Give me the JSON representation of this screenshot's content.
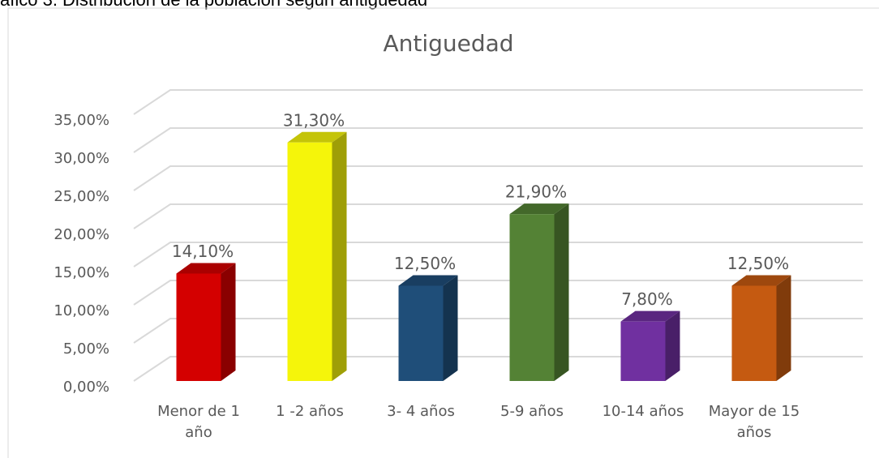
{
  "caption": "áfico 3. Distribución de la población según antigüedad",
  "chart_data": {
    "type": "bar3d",
    "title": "Antiguedad",
    "categories": [
      "Menor de 1 año",
      "1 -2 años",
      "3- 4 años",
      "5-9 años",
      "10-14 años",
      "Mayor de 15 años"
    ],
    "values": [
      14.1,
      31.3,
      12.5,
      21.9,
      7.8,
      12.5
    ],
    "value_labels": [
      "14,10%",
      "31,30%",
      "12,50%",
      "21,90%",
      "7,80%",
      "12,50%"
    ],
    "colors": [
      "#d40000",
      "#f5f50a",
      "#1f4e79",
      "#548235",
      "#7030a0",
      "#c55a11"
    ],
    "ylim": [
      0,
      35
    ],
    "yticks": [
      {
        "value": 0,
        "label": "0,00%"
      },
      {
        "value": 5,
        "label": "5,00%"
      },
      {
        "value": 10,
        "label": "10,00%"
      },
      {
        "value": 15,
        "label": "15,00%"
      },
      {
        "value": 20,
        "label": "20,00%"
      },
      {
        "value": 25,
        "label": "25,00%"
      },
      {
        "value": 30,
        "label": "30,00%"
      },
      {
        "value": 35,
        "label": "35,00%"
      }
    ],
    "grid": true
  }
}
